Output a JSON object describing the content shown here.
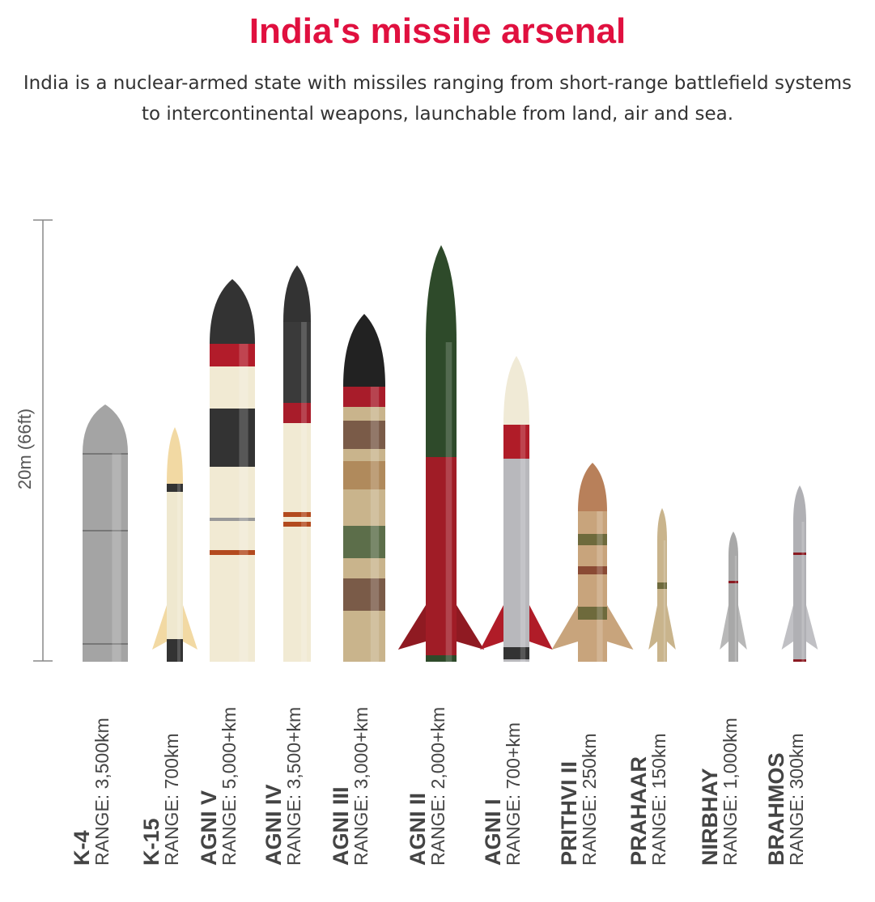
{
  "title": "India's missile arsenal",
  "subtitle": "India is a nuclear-armed state with missiles ranging from short-range battlefield systems to intercontinental weapons, launchable from land, air and sea.",
  "scale_label": "20m (66ft)",
  "missiles": [
    {
      "name": "K-4",
      "range": "RANGE: 3,500km"
    },
    {
      "name": "K-15",
      "range": "RANGE: 700km"
    },
    {
      "name": "AGNI V",
      "range": "RANGE: 5,000+km"
    },
    {
      "name": "AGNI IV",
      "range": "RANGE: 3,500+km"
    },
    {
      "name": "AGNI III",
      "range": "RANGE: 3,000+km"
    },
    {
      "name": "AGNI II",
      "range": "RANGE: 2,000+km"
    },
    {
      "name": "AGNI I",
      "range": "RANGE: 700+km"
    },
    {
      "name": "PRITHVI II",
      "range": "RANGE: 250km"
    },
    {
      "name": "PRAHAAR",
      "range": "RANGE: 150km"
    },
    {
      "name": "NIRBHAY",
      "range": "RANGE: 1,000km"
    },
    {
      "name": "BRAHMOS",
      "range": "RANGE: 300km"
    }
  ]
}
